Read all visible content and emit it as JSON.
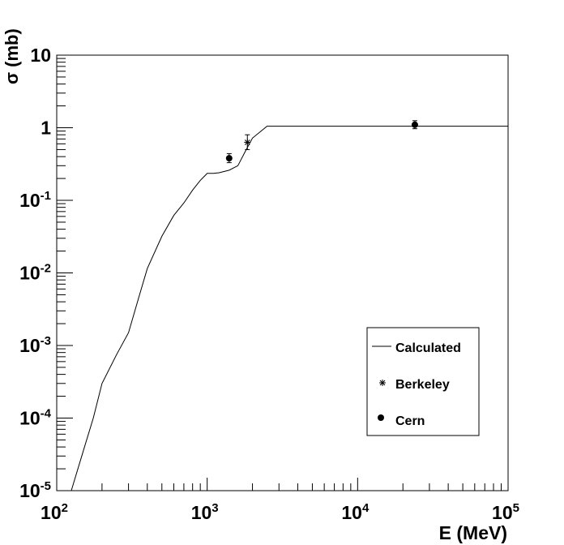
{
  "chart_data": {
    "type": "line",
    "title": "",
    "xlabel": "E (MeV)",
    "ylabel": "σ (mb)",
    "x_scale": "log",
    "y_scale": "log",
    "xlim": [
      100,
      100000
    ],
    "ylim": [
      1e-05,
      10
    ],
    "x_ticks": [
      {
        "base": "10",
        "exp": "2",
        "value": 100
      },
      {
        "base": "10",
        "exp": "3",
        "value": 1000
      },
      {
        "base": "10",
        "exp": "4",
        "value": 10000
      },
      {
        "base": "10",
        "exp": "5",
        "value": 100000
      }
    ],
    "y_ticks": [
      {
        "base": "10",
        "exp": "-5",
        "value": 1e-05
      },
      {
        "base": "10",
        "exp": "-4",
        "value": 0.0001
      },
      {
        "base": "10",
        "exp": "-3",
        "value": 0.001
      },
      {
        "base": "10",
        "exp": "-2",
        "value": 0.01
      },
      {
        "base": "10",
        "exp": "-1",
        "value": 0.1
      },
      {
        "base": "1",
        "exp": "",
        "value": 1
      },
      {
        "base": "10",
        "exp": "",
        "value": 10
      }
    ],
    "grid": false,
    "legend_position": "bottom-right",
    "series": [
      {
        "name": "Calculated",
        "kind": "line",
        "color": "#000000",
        "x": [
          125,
          150,
          175,
          200,
          250,
          300,
          350,
          400,
          500,
          600,
          700,
          800,
          900,
          1000,
          1100,
          1200,
          1400,
          1600,
          1800,
          2000,
          2500,
          5000,
          10000,
          20000,
          50000,
          100000
        ],
        "y": [
          1e-05,
          3.5e-05,
          0.0001,
          0.0003,
          0.00075,
          0.0015,
          0.0045,
          0.0115,
          0.032,
          0.062,
          0.092,
          0.138,
          0.188,
          0.235,
          0.235,
          0.24,
          0.26,
          0.3,
          0.48,
          0.72,
          1.05,
          1.05,
          1.05,
          1.05,
          1.05,
          1.05
        ]
      },
      {
        "name": "Berkeley",
        "kind": "points",
        "marker": "asterisk",
        "color": "#000000",
        "points": [
          {
            "x": 1850,
            "y": 0.63,
            "y_low": 0.5,
            "y_high": 0.8
          }
        ]
      },
      {
        "name": "Cern",
        "kind": "points",
        "marker": "circle",
        "color": "#000000",
        "points": [
          {
            "x": 1400,
            "y": 0.38,
            "y_low": 0.33,
            "y_high": 0.44
          },
          {
            "x": 24000,
            "y": 1.1,
            "y_low": 0.97,
            "y_high": 1.25
          }
        ]
      }
    ]
  }
}
